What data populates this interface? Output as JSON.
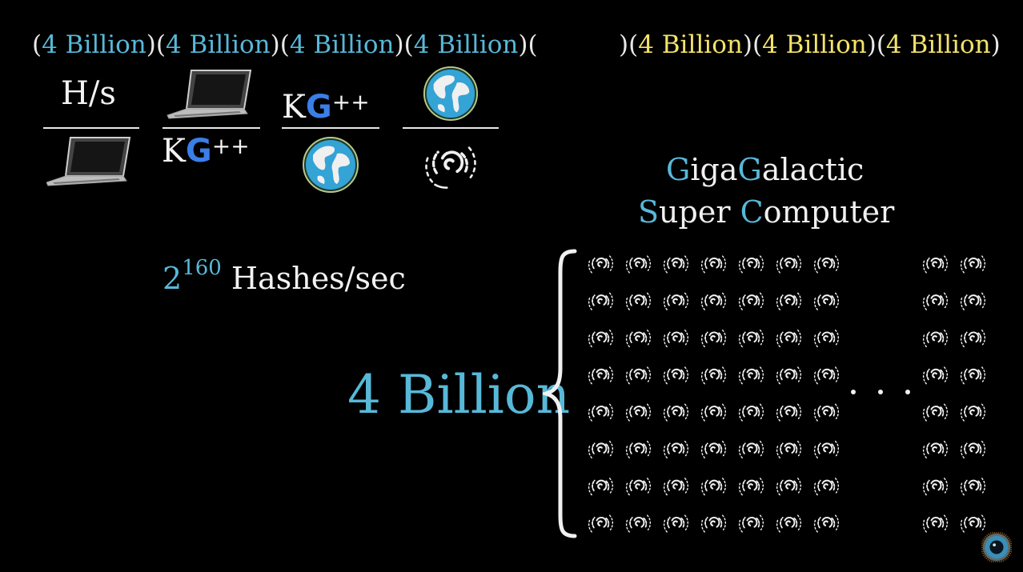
{
  "top_row": {
    "blue_items": [
      "4 Billion",
      "4 Billion",
      "4 Billion",
      "4 Billion"
    ],
    "yellow_items": [
      "4 Billion",
      "4 Billion",
      "4 Billion"
    ]
  },
  "fractions": {
    "first_numerator": "H/s",
    "kg_letter": "K",
    "kg_g": "G",
    "kg_plus": "++"
  },
  "title": {
    "line1_cap1": "G",
    "line1_rest1": "iga",
    "line1_cap2": "G",
    "line1_rest2": "alactic",
    "line2_cap1": "S",
    "line2_rest1": "uper ",
    "line2_cap2": "C",
    "line2_rest2": "omputer"
  },
  "hashes": {
    "base": "2",
    "exponent": "160",
    "label": "Hashes/sec"
  },
  "big_label": "4 Billion",
  "ellipsis": ". . .",
  "icons": [
    "laptop-icon",
    "earth-icon",
    "galaxy-icon",
    "logo-icon"
  ],
  "colors": {
    "accent_blue": "#58b8d8",
    "accent_yellow": "#f4e36b",
    "google_blue": "#3a7ee8",
    "background": "#000000"
  }
}
